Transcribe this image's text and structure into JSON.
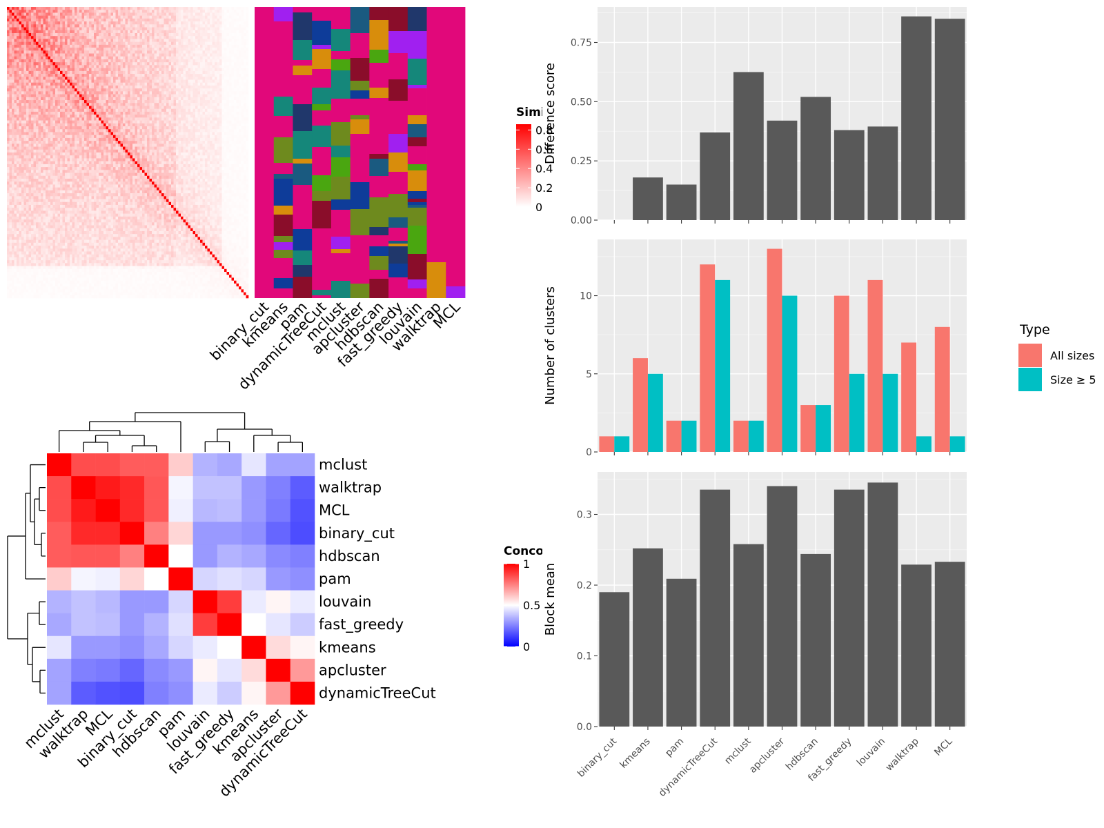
{
  "methods": [
    "binary_cut",
    "kmeans",
    "pam",
    "dynamicTreeCut",
    "mclust",
    "apcluster",
    "hdbscan",
    "fast_greedy",
    "louvain",
    "walktrap",
    "MCL"
  ],
  "chart_data": [
    {
      "type": "heatmap",
      "name": "similarity-matrix",
      "legend_title": "Similarity",
      "legend_ticks": [
        "0",
        "0.2",
        "0.4",
        "0.6",
        "0.8"
      ],
      "color_low": "#ffffff",
      "color_high": "#ff0000",
      "n_terms": 100
    },
    {
      "type": "heatmap",
      "name": "cluster-assignments",
      "columns": [
        "binary_cut",
        "kmeans",
        "pam",
        "dynamicTreeCut",
        "mclust",
        "apcluster",
        "hdbscan",
        "fast_greedy",
        "louvain",
        "walktrap",
        "MCL"
      ],
      "palette": [
        "#e1087a",
        "#0e3c99",
        "#6e8a1e",
        "#15877a",
        "#a020f0",
        "#4aa610",
        "#8a0d2a",
        "#d88d0c",
        "#1a5a80",
        "#20376b"
      ]
    },
    {
      "type": "bar",
      "name": "difference-score",
      "categories": [
        "binary_cut",
        "kmeans",
        "pam",
        "dynamicTreeCut",
        "mclust",
        "apcluster",
        "hdbscan",
        "fast_greedy",
        "louvain",
        "walktrap",
        "MCL"
      ],
      "values": [
        0.0,
        0.18,
        0.15,
        0.37,
        0.625,
        0.42,
        0.52,
        0.38,
        0.395,
        0.86,
        0.85
      ],
      "ylabel": "Difference score",
      "yticks": [
        "0.00",
        "0.25",
        "0.50",
        "0.75"
      ],
      "ylim": [
        0,
        0.9
      ],
      "color": "#595959"
    },
    {
      "type": "bar",
      "name": "number-of-clusters",
      "categories": [
        "binary_cut",
        "kmeans",
        "pam",
        "dynamicTreeCut",
        "mclust",
        "apcluster",
        "hdbscan",
        "fast_greedy",
        "louvain",
        "walktrap",
        "MCL"
      ],
      "series": [
        {
          "name": "All sizes",
          "color": "#f8766d",
          "values": [
            1,
            6,
            2,
            12,
            2,
            13,
            3,
            10,
            11,
            7,
            8
          ]
        },
        {
          "name": "Size ≥ 5",
          "color": "#00bfc4",
          "values": [
            1,
            5,
            2,
            11,
            2,
            10,
            3,
            5,
            5,
            1,
            1
          ]
        }
      ],
      "ylabel": "Number of clusters",
      "yticks": [
        "0",
        "5",
        "10"
      ],
      "ylim": [
        0,
        13.6
      ],
      "legend_title": "Type",
      "legend_position": "right"
    },
    {
      "type": "bar",
      "name": "block-mean",
      "categories": [
        "binary_cut",
        "kmeans",
        "pam",
        "dynamicTreeCut",
        "mclust",
        "apcluster",
        "hdbscan",
        "fast_greedy",
        "louvain",
        "walktrap",
        "MCL"
      ],
      "values": [
        0.19,
        0.252,
        0.209,
        0.335,
        0.258,
        0.34,
        0.244,
        0.335,
        0.345,
        0.229,
        0.233
      ],
      "ylabel": "Block mean",
      "yticks": [
        "0.0",
        "0.1",
        "0.2",
        "0.3"
      ],
      "ylim": [
        0,
        0.36
      ],
      "color": "#595959"
    },
    {
      "type": "heatmap",
      "name": "concordance",
      "legend_title": "Concordance",
      "legend_ticks": [
        "0",
        "0.5",
        "1"
      ],
      "rows": [
        "mclust",
        "walktrap",
        "MCL",
        "binary_cut",
        "hdbscan",
        "pam",
        "louvain",
        "fast_greedy",
        "kmeans",
        "apcluster",
        "dynamicTreeCut"
      ],
      "values": [
        [
          1.0,
          0.85,
          0.85,
          0.82,
          0.82,
          0.6,
          0.35,
          0.33,
          0.45,
          0.32,
          0.32
        ],
        [
          0.85,
          1.0,
          0.95,
          0.92,
          0.83,
          0.48,
          0.38,
          0.38,
          0.3,
          0.25,
          0.18
        ],
        [
          0.85,
          0.95,
          1.0,
          0.92,
          0.83,
          0.47,
          0.36,
          0.37,
          0.3,
          0.24,
          0.16
        ],
        [
          0.82,
          0.92,
          0.92,
          1.0,
          0.75,
          0.58,
          0.3,
          0.3,
          0.28,
          0.2,
          0.15
        ],
        [
          0.82,
          0.83,
          0.83,
          0.75,
          1.0,
          0.5,
          0.3,
          0.35,
          0.33,
          0.27,
          0.25
        ],
        [
          0.6,
          0.48,
          0.47,
          0.58,
          0.5,
          1.0,
          0.42,
          0.44,
          0.42,
          0.3,
          0.28
        ],
        [
          0.35,
          0.38,
          0.36,
          0.3,
          0.3,
          0.42,
          1.0,
          0.88,
          0.46,
          0.52,
          0.46
        ],
        [
          0.33,
          0.38,
          0.37,
          0.3,
          0.35,
          0.44,
          0.88,
          1.0,
          0.5,
          0.45,
          0.4
        ],
        [
          0.45,
          0.3,
          0.3,
          0.28,
          0.33,
          0.42,
          0.46,
          0.5,
          1.0,
          0.57,
          0.52
        ],
        [
          0.32,
          0.25,
          0.24,
          0.2,
          0.27,
          0.3,
          0.52,
          0.45,
          0.57,
          1.0,
          0.7
        ],
        [
          0.32,
          0.18,
          0.16,
          0.15,
          0.25,
          0.28,
          0.46,
          0.4,
          0.52,
          0.7,
          1.0
        ]
      ]
    }
  ]
}
